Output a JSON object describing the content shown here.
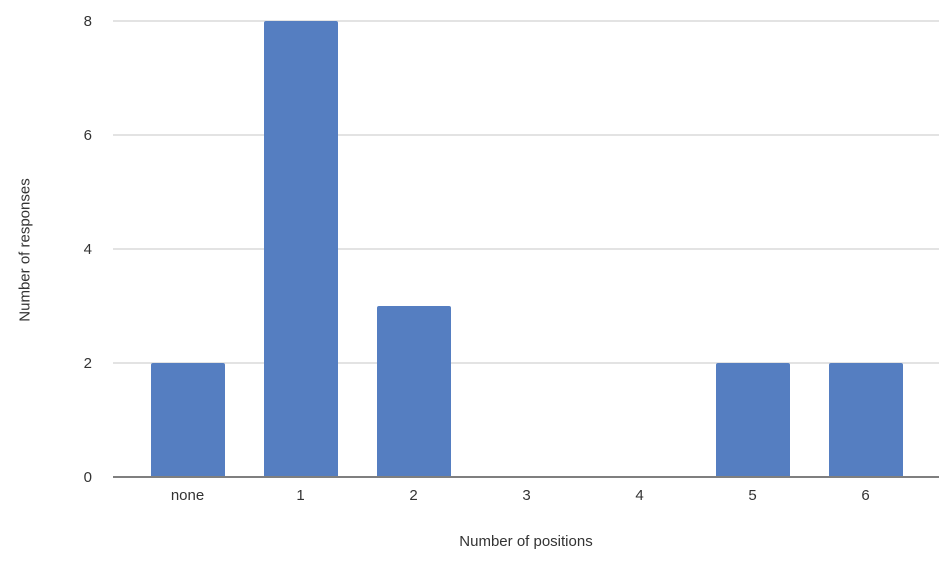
{
  "chart_data": {
    "type": "bar",
    "title": "",
    "categories": [
      "none",
      "1",
      "2",
      "3",
      "4",
      "5",
      "6"
    ],
    "values": [
      2,
      8,
      3,
      0,
      0,
      2,
      2
    ],
    "series": [
      {
        "name": "Number of responses",
        "values": [
          2,
          8,
          3,
          0,
          0,
          2,
          2
        ]
      }
    ],
    "xlabel": "Number of positions",
    "ylabel": "Number of responses",
    "yticks": [
      0,
      2,
      4,
      6,
      8
    ],
    "ylim": [
      0,
      8
    ],
    "grid": true,
    "legend": "none",
    "colors": {
      "bar": "#557ec1",
      "gridline": "#e3e3e3",
      "baseline": "#7f7f7f",
      "text": "#333333",
      "background": "#ffffff"
    }
  }
}
